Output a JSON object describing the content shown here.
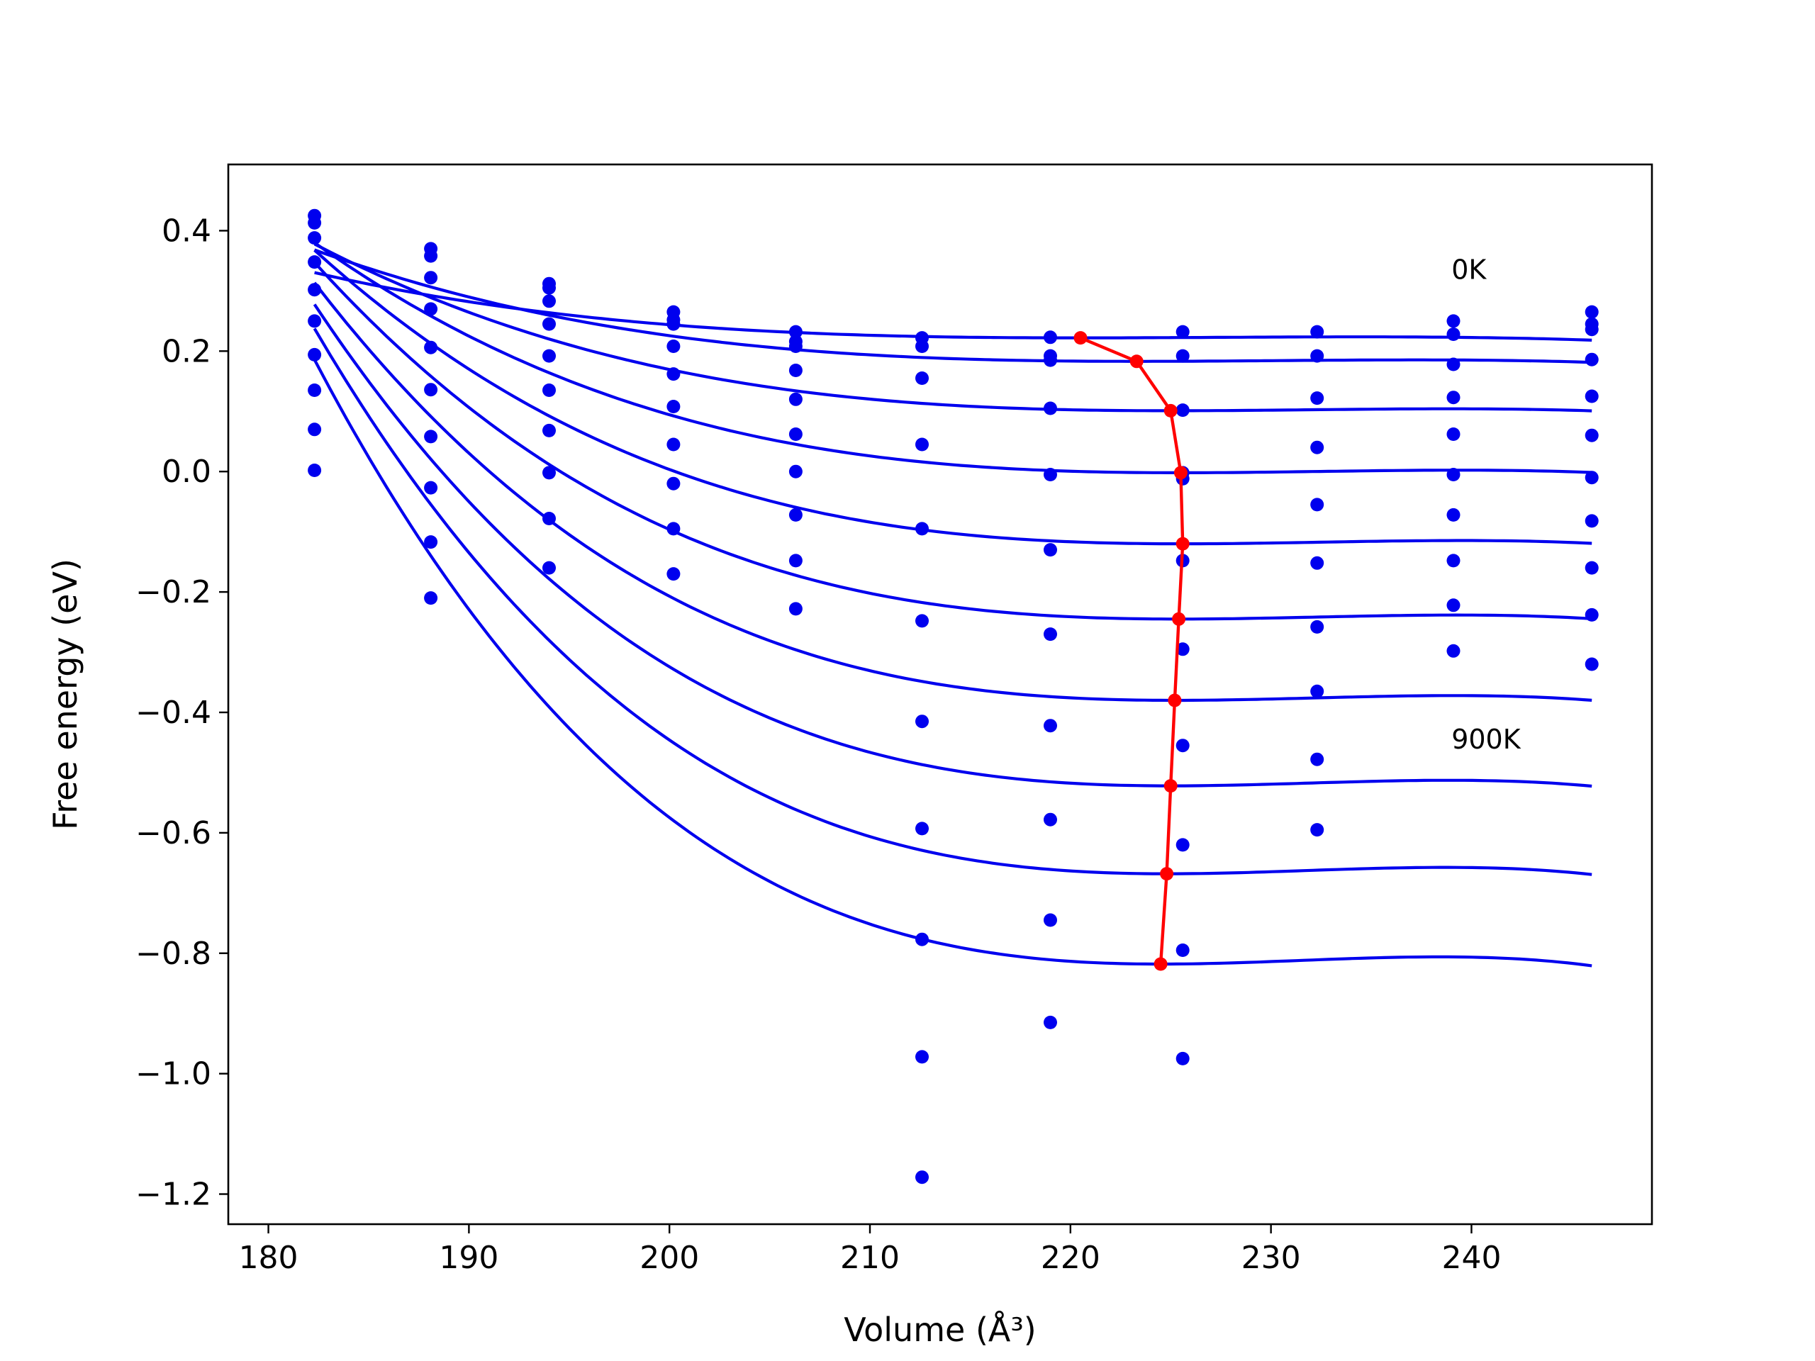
{
  "chart_data": {
    "type": "line",
    "xlabel": "Volume (Å³)",
    "ylabel": "Free energy (eV)",
    "xlim": [
      178,
      249
    ],
    "ylim": [
      -1.25,
      0.51
    ],
    "xticks": [
      180,
      190,
      200,
      210,
      220,
      230,
      240
    ],
    "xtick_labels": [
      "180",
      "190",
      "200",
      "210",
      "220",
      "230",
      "240"
    ],
    "yticks": [
      0.4,
      0.2,
      0.0,
      -0.2,
      -0.4,
      -0.6,
      -0.8,
      -1.0,
      -1.2
    ],
    "ytick_labels": [
      "0.4",
      "0.2",
      "0.0",
      "−0.2",
      "−0.4",
      "−0.6",
      "−0.8",
      "−1.0",
      "−1.2"
    ],
    "grid": false,
    "annotations": [
      {
        "text": "0K",
        "x": 239.0,
        "y": 0.32
      },
      {
        "text": "900K",
        "x": 239.0,
        "y": -0.46
      }
    ],
    "volumes": [
      182.3,
      188.1,
      194.0,
      200.2,
      206.3,
      212.6,
      219.0,
      225.6,
      232.3,
      239.1,
      246.0
    ],
    "isotherms": [
      {
        "v0": 220.5,
        "f0": 0.222,
        "d": 2.62e-05,
        "points": [
          0.425,
          0.37,
          0.312,
          0.265,
          0.232,
          0.222,
          0.223,
          0.232,
          0.232,
          0.25,
          0.265
        ]
      },
      {
        "v0": 223.3,
        "f0": 0.183,
        "d": 3.71e-05,
        "points": [
          0.413,
          0.358,
          0.305,
          0.252,
          0.216,
          0.208,
          0.192,
          0.192,
          0.192,
          0.228,
          0.245
        ]
      },
      {
        "v0": 225.0,
        "f0": 0.101,
        "d": 4.98e-05,
        "points": [
          0.388,
          0.322,
          0.283,
          0.245,
          0.208,
          0.155,
          0.185,
          0.102,
          0.122,
          0.178,
          0.236
        ]
      },
      {
        "v0": 225.5,
        "f0": -0.002,
        "d": 6.66e-05,
        "points": [
          0.348,
          0.27,
          0.245,
          0.208,
          0.168,
          0.045,
          0.105,
          -0.002,
          0.04,
          0.123,
          0.186
        ]
      },
      {
        "v0": 225.6,
        "f0": -0.12,
        "d": 8.45e-05,
        "points": [
          0.302,
          0.206,
          0.192,
          0.162,
          0.12,
          -0.095,
          -0.005,
          -0.012,
          -0.055,
          0.062,
          0.125
        ]
      },
      {
        "v0": 225.4,
        "f0": -0.245,
        "d": 0.0001039,
        "points": [
          0.25,
          0.136,
          0.135,
          0.108,
          0.062,
          -0.248,
          -0.13,
          -0.148,
          -0.152,
          -0.005,
          0.06
        ]
      },
      {
        "v0": 225.2,
        "f0": -0.38,
        "d": 0.0001232,
        "points": [
          0.194,
          0.058,
          0.068,
          0.045,
          0.0,
          -0.415,
          -0.27,
          -0.295,
          -0.258,
          -0.072,
          -0.01
        ]
      },
      {
        "v0": 225.0,
        "f0": -0.522,
        "d": 0.0001438,
        "points": [
          0.135,
          -0.027,
          -0.002,
          -0.02,
          -0.072,
          -0.593,
          -0.422,
          -0.455,
          -0.365,
          -0.148,
          -0.082
        ]
      },
      {
        "v0": 224.8,
        "f0": -0.668,
        "d": 0.0001649,
        "points": [
          0.07,
          -0.117,
          -0.078,
          -0.095,
          -0.148,
          -0.777,
          -0.578,
          -0.62,
          -0.478,
          -0.222,
          -0.16
        ]
      },
      {
        "v0": 224.5,
        "f0": -0.818,
        "d": 0.0001863,
        "points": [
          0.002,
          -0.21,
          -0.16,
          -0.17,
          -0.228,
          -0.972,
          -0.745,
          -0.795,
          -0.595,
          -0.298,
          -0.238
        ]
      },
      {
        "v0": null,
        "f0": null,
        "d": null,
        "points": [
          null,
          null,
          null,
          null,
          null,
          -1.172,
          -0.915,
          -0.975,
          null,
          null,
          -0.32
        ]
      }
    ],
    "equilibrium_path": {
      "x": [
        220.5,
        223.3,
        225.0,
        225.5,
        225.6,
        225.4,
        225.2,
        225.0,
        224.8,
        224.5
      ],
      "y": [
        0.222,
        0.183,
        0.101,
        -0.002,
        -0.12,
        -0.245,
        -0.38,
        -0.522,
        -0.668,
        -0.818
      ]
    },
    "colors": {
      "curves": "#0000ee",
      "points": "#0000ee",
      "equilibrium": "#ff0000",
      "axes": "#000000"
    }
  }
}
